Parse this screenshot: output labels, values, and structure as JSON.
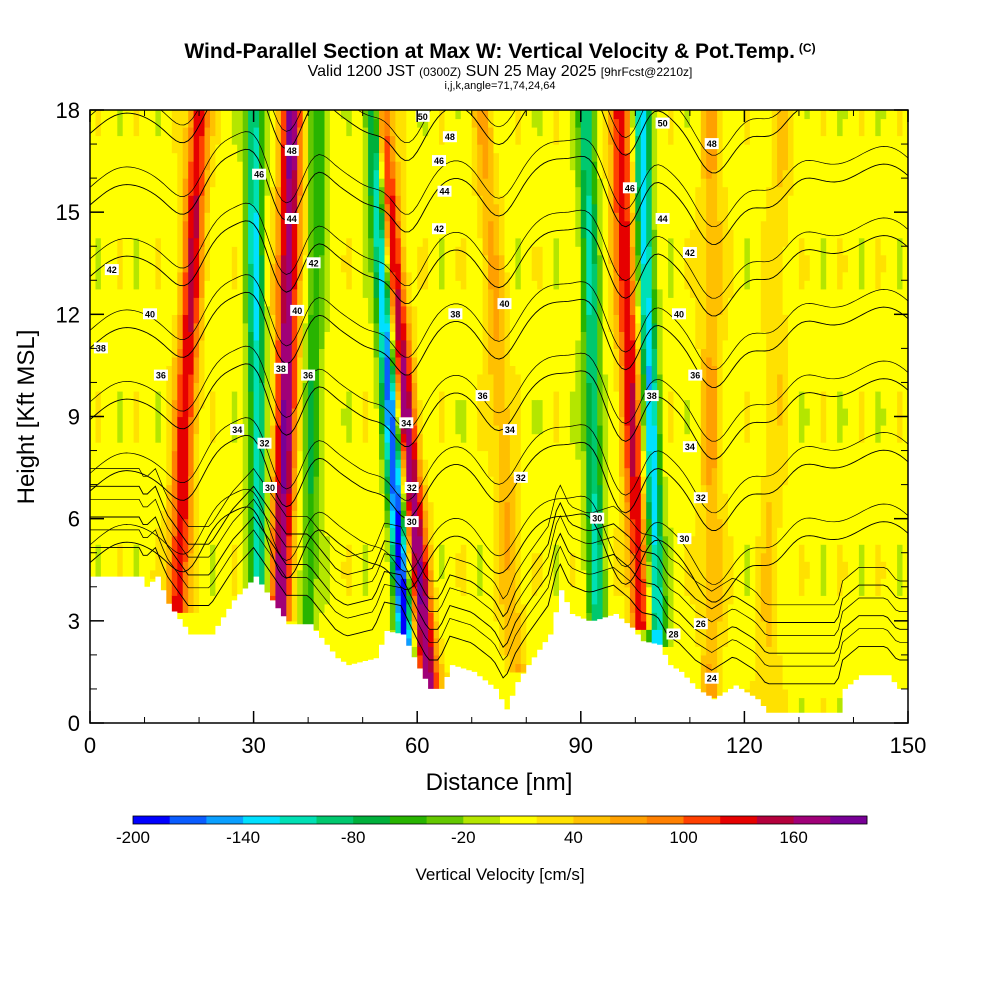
{
  "title": {
    "main": "Wind-Parallel Section at Max W: Vertical Velocity & Pot.Temp.",
    "copyright": "(C)",
    "valid_prefix": "Valid 1200 JST",
    "valid_z": "(0300Z)",
    "valid_date": "SUN 25 May 2025",
    "fcst": "[9hrFcst@2210z]",
    "indices": "i,j,k,angle=71,74,24,64"
  },
  "chart_data": {
    "type": "heatmap",
    "xlabel": "Distance [nm]",
    "ylabel": "Height [Kft MSL]",
    "xlim": [
      0,
      150
    ],
    "ylim": [
      0,
      18
    ],
    "x_ticks": [
      "0",
      "30",
      "60",
      "90",
      "120",
      "150"
    ],
    "y_ticks": [
      "0",
      "3",
      "6",
      "9",
      "12",
      "15",
      "18"
    ],
    "colorbar": {
      "label": "Vertical Velocity [cm/s]",
      "tick_labels": [
        "-200",
        "-140",
        "-80",
        "-20",
        "40",
        "100",
        "160"
      ],
      "range": [
        -200,
        200
      ],
      "step": 20,
      "colors": [
        "#0000ff",
        "#0a5cff",
        "#0a9fff",
        "#00e0ff",
        "#00e0b4",
        "#00c86e",
        "#00b03c",
        "#28b400",
        "#64c800",
        "#b4e600",
        "#ffff00",
        "#ffe100",
        "#ffc000",
        "#ffa000",
        "#ff8000",
        "#ff4000",
        "#e60000",
        "#b4003c",
        "#a00078",
        "#780096"
      ]
    },
    "terrain_profile_kft": [
      [
        0,
        4.3
      ],
      [
        9,
        4.3
      ],
      [
        10,
        4.0
      ],
      [
        12,
        4.3
      ],
      [
        14,
        3.5
      ],
      [
        18,
        2.6
      ],
      [
        22,
        2.6
      ],
      [
        26,
        3.6
      ],
      [
        30,
        4.3
      ],
      [
        33,
        3.6
      ],
      [
        36,
        2.9
      ],
      [
        40,
        2.9
      ],
      [
        43,
        2.3
      ],
      [
        45,
        1.9
      ],
      [
        47,
        1.7
      ],
      [
        52,
        1.9
      ],
      [
        54,
        2.7
      ],
      [
        57,
        2.6
      ],
      [
        60,
        1.6
      ],
      [
        62,
        1.0
      ],
      [
        64,
        1.0
      ],
      [
        66,
        1.7
      ],
      [
        70,
        1.5
      ],
      [
        74,
        1.0
      ],
      [
        76,
        0.4
      ],
      [
        78,
        1.2
      ],
      [
        80,
        1.7
      ],
      [
        84,
        2.6
      ],
      [
        86,
        3.9
      ],
      [
        88,
        3.2
      ],
      [
        91,
        3.0
      ],
      [
        92,
        3.0
      ],
      [
        96,
        3.2
      ],
      [
        99,
        2.8
      ],
      [
        101,
        2.4
      ],
      [
        104,
        2.3
      ],
      [
        106,
        1.7
      ],
      [
        108,
        1.5
      ],
      [
        111,
        1.0
      ],
      [
        114,
        0.7
      ],
      [
        118,
        1.1
      ],
      [
        122,
        0.7
      ],
      [
        124,
        0.3
      ],
      [
        137,
        0.3
      ],
      [
        138,
        1.0
      ],
      [
        141,
        1.4
      ],
      [
        146,
        1.4
      ],
      [
        148,
        1.0
      ],
      [
        150,
        1.0
      ]
    ],
    "updraft_streaks": [
      {
        "x_base": 16,
        "z_base": 3.6,
        "x_top": 20,
        "z_top": 18,
        "w_max": 140
      },
      {
        "x_base": 35,
        "z_base": 3.2,
        "x_top": 37,
        "z_top": 18,
        "w_max": 180
      },
      {
        "x_base": 62,
        "z_base": 1.2,
        "x_top": 53,
        "z_top": 18,
        "w_max": 180
      },
      {
        "x_base": 78,
        "z_base": 1.7,
        "x_top": 72,
        "z_top": 18,
        "w_max": 60
      },
      {
        "x_base": 101,
        "z_base": 3.0,
        "x_top": 97,
        "z_top": 18,
        "w_max": 140
      },
      {
        "x_base": 114,
        "z_base": 1.0,
        "x_top": 114,
        "z_top": 18,
        "w_max": 60
      },
      {
        "x_base": 124,
        "z_base": 0.6,
        "x_top": 127,
        "z_top": 18,
        "w_max": 40
      }
    ],
    "downdraft_streaks": [
      {
        "x_base": 31,
        "z_base": 3.8,
        "x_top": 30,
        "z_top": 18,
        "w_min": -120
      },
      {
        "x_base": 58,
        "z_base": 1.8,
        "x_top": 52,
        "z_top": 18,
        "w_min": -200
      },
      {
        "x_base": 93,
        "z_base": 3.0,
        "x_top": 91,
        "z_top": 18,
        "w_min": -100
      },
      {
        "x_base": 104,
        "z_base": 2.6,
        "x_top": 101,
        "z_top": 18,
        "w_min": -140
      },
      {
        "x_base": 40,
        "z_base": 3.0,
        "x_top": 42,
        "z_top": 18,
        "w_min": -60
      }
    ],
    "contour_labels": [
      {
        "text": "50",
        "x": 61,
        "z": 17.8
      },
      {
        "text": "48",
        "x": 66,
        "z": 17.2
      },
      {
        "text": "46",
        "x": 64,
        "z": 16.5
      },
      {
        "text": "44",
        "x": 65,
        "z": 15.6
      },
      {
        "text": "42",
        "x": 64,
        "z": 14.5
      },
      {
        "text": "40",
        "x": 76,
        "z": 12.3
      },
      {
        "text": "38",
        "x": 67,
        "z": 12.0
      },
      {
        "text": "36",
        "x": 72,
        "z": 9.6
      },
      {
        "text": "34",
        "x": 77,
        "z": 8.6
      },
      {
        "text": "32",
        "x": 79,
        "z": 7.2
      },
      {
        "text": "30",
        "x": 93,
        "z": 6.0
      },
      {
        "text": "48",
        "x": 37,
        "z": 16.8
      },
      {
        "text": "46",
        "x": 31,
        "z": 16.1
      },
      {
        "text": "44",
        "x": 37,
        "z": 14.8
      },
      {
        "text": "42",
        "x": 41,
        "z": 13.5
      },
      {
        "text": "40",
        "x": 38,
        "z": 12.1
      },
      {
        "text": "38",
        "x": 35,
        "z": 10.4
      },
      {
        "text": "36",
        "x": 40,
        "z": 10.2
      },
      {
        "text": "34",
        "x": 27,
        "z": 8.6
      },
      {
        "text": "32",
        "x": 32,
        "z": 8.2
      },
      {
        "text": "30",
        "x": 33,
        "z": 6.9
      },
      {
        "text": "42",
        "x": 4,
        "z": 13.3
      },
      {
        "text": "40",
        "x": 11,
        "z": 12.0
      },
      {
        "text": "38",
        "x": 2,
        "z": 11.0
      },
      {
        "text": "36",
        "x": 13,
        "z": 10.2
      },
      {
        "text": "34",
        "x": 58,
        "z": 8.8
      },
      {
        "text": "32",
        "x": 59,
        "z": 6.9
      },
      {
        "text": "30",
        "x": 59,
        "z": 5.9
      },
      {
        "text": "50",
        "x": 105,
        "z": 17.6
      },
      {
        "text": "48",
        "x": 114,
        "z": 17.0
      },
      {
        "text": "46",
        "x": 99,
        "z": 15.7
      },
      {
        "text": "44",
        "x": 105,
        "z": 14.8
      },
      {
        "text": "42",
        "x": 110,
        "z": 13.8
      },
      {
        "text": "40",
        "x": 108,
        "z": 12.0
      },
      {
        "text": "38",
        "x": 103,
        "z": 9.6
      },
      {
        "text": "36",
        "x": 111,
        "z": 10.2
      },
      {
        "text": "34",
        "x": 110,
        "z": 8.1
      },
      {
        "text": "32",
        "x": 112,
        "z": 6.6
      },
      {
        "text": "30",
        "x": 109,
        "z": 5.4
      },
      {
        "text": "28",
        "x": 107,
        "z": 2.6
      },
      {
        "text": "26",
        "x": 112,
        "z": 2.9
      },
      {
        "text": "24",
        "x": 114,
        "z": 1.3
      }
    ],
    "theta_levels_K": [
      24,
      26,
      28,
      30,
      32,
      34,
      36,
      38,
      40,
      42,
      44,
      46,
      48,
      50
    ]
  }
}
